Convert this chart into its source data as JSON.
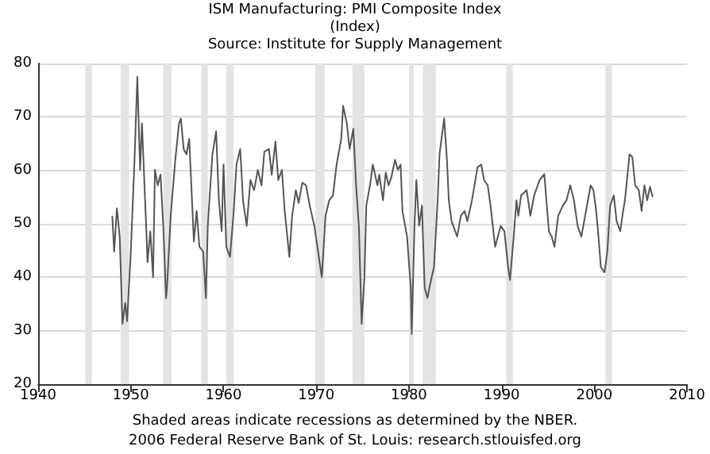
{
  "chart_data": {
    "type": "line",
    "title": "ISM Manufacturing: PMI Composite Index",
    "subtitle": "(Index)",
    "annotations": [
      "Source: Institute for Supply Management",
      "Shaded areas indicate recessions as determined by the NBER.",
      "2006 Federal Reserve Bank of St. Louis: research.stlouisfed.org"
    ],
    "x": [
      1948.0,
      1948.2,
      1948.5,
      1948.8,
      1949.1,
      1949.4,
      1949.6,
      1950.0,
      1950.4,
      1950.7,
      1951.0,
      1951.2,
      1951.7,
      1951.8,
      1952.1,
      1952.4,
      1952.6,
      1952.9,
      1953.2,
      1953.5,
      1953.8,
      1953.9,
      1954.3,
      1954.8,
      1955.2,
      1955.4,
      1955.7,
      1956.0,
      1956.3,
      1956.6,
      1956.8,
      1957.1,
      1957.4,
      1957.8,
      1958.1,
      1958.3,
      1958.8,
      1959.2,
      1959.5,
      1959.8,
      1960.0,
      1960.3,
      1960.7,
      1961.1,
      1961.4,
      1961.8,
      1962.1,
      1962.5,
      1962.9,
      1963.3,
      1963.7,
      1964.1,
      1964.4,
      1964.9,
      1965.2,
      1965.6,
      1965.9,
      1966.3,
      1966.6,
      1967.1,
      1967.4,
      1967.8,
      1968.1,
      1968.5,
      1968.9,
      1969.3,
      1969.8,
      1970.2,
      1970.6,
      1971.0,
      1971.4,
      1971.8,
      1972.2,
      1972.7,
      1972.9,
      1973.3,
      1973.6,
      1974.0,
      1974.3,
      1974.6,
      1974.9,
      1975.2,
      1975.4,
      1975.8,
      1976.1,
      1976.6,
      1976.8,
      1977.2,
      1977.5,
      1977.8,
      1978.1,
      1978.5,
      1978.8,
      1979.1,
      1979.3,
      1979.8,
      1980.2,
      1980.3,
      1980.6,
      1980.8,
      1981.1,
      1981.4,
      1981.7,
      1982.0,
      1982.2,
      1982.7,
      1983.1,
      1983.3,
      1983.8,
      1984.1,
      1984.3,
      1984.6,
      1985.2,
      1985.6,
      1986.0,
      1986.3,
      1986.8,
      1987.4,
      1987.8,
      1988.1,
      1988.5,
      1988.8,
      1989.3,
      1989.9,
      1990.3,
      1990.7,
      1990.9,
      1991.3,
      1991.6,
      1991.8,
      1992.1,
      1992.7,
      1993.1,
      1993.5,
      1994.1,
      1994.6,
      1995.1,
      1995.4,
      1995.7,
      1996.1,
      1996.6,
      1997.0,
      1997.4,
      1997.8,
      1998.2,
      1998.6,
      1999.1,
      1999.6,
      1999.9,
      2000.2,
      2000.4,
      2000.7,
      2001.1,
      2001.4,
      2001.7,
      2002.1,
      2002.4,
      2002.8,
      2003.1,
      2003.3,
      2003.8,
      2004.1,
      2004.4,
      2004.8,
      2005.1,
      2005.4,
      2005.7,
      2006.0,
      2006.3
    ],
    "series": [
      {
        "color": "#555555",
        "values": [
          51.5,
          44.8,
          52.9,
          47.6,
          31.3,
          35.2,
          31.8,
          44.8,
          62.0,
          77.5,
          60.1,
          68.8,
          47.6,
          42.8,
          48.6,
          40.0,
          60.1,
          57.2,
          59.2,
          49.6,
          36.1,
          38.0,
          51.5,
          62.0,
          68.8,
          69.7,
          64.0,
          63.0,
          65.9,
          54.4,
          46.7,
          52.4,
          45.7,
          44.8,
          36.1,
          49.6,
          63.0,
          67.3,
          54.4,
          48.6,
          61.1,
          45.7,
          43.8,
          52.4,
          61.1,
          64.0,
          54.4,
          49.6,
          58.2,
          56.3,
          60.1,
          57.2,
          63.5,
          64.0,
          59.2,
          65.4,
          58.2,
          60.1,
          52.4,
          43.8,
          51.5,
          56.3,
          53.9,
          57.7,
          57.2,
          53.4,
          49.6,
          44.8,
          40.0,
          51.5,
          54.4,
          55.3,
          61.1,
          65.9,
          72.1,
          68.8,
          64.0,
          67.8,
          57.2,
          49.6,
          31.3,
          40.0,
          53.4,
          57.2,
          61.1,
          57.2,
          59.2,
          54.4,
          59.6,
          57.2,
          58.7,
          62.0,
          60.1,
          61.1,
          52.4,
          47.6,
          38.0,
          29.4,
          49.6,
          58.2,
          49.6,
          53.4,
          38.0,
          36.1,
          38.0,
          41.9,
          54.4,
          63.0,
          69.7,
          62.0,
          54.4,
          50.5,
          47.6,
          51.5,
          52.4,
          50.5,
          54.4,
          60.6,
          61.1,
          58.2,
          57.2,
          53.4,
          45.7,
          49.6,
          48.6,
          41.9,
          39.5,
          47.6,
          54.4,
          51.5,
          55.3,
          56.3,
          51.5,
          55.3,
          58.2,
          59.3,
          48.6,
          47.6,
          45.7,
          51.5,
          53.4,
          54.4,
          57.2,
          54.4,
          49.6,
          47.6,
          52.4,
          57.2,
          56.3,
          52.4,
          48.6,
          41.9,
          40.9,
          44.8,
          53.4,
          55.3,
          50.5,
          48.6,
          52.4,
          54.4,
          63.0,
          62.5,
          57.2,
          56.3,
          52.4,
          57.2,
          54.4,
          56.9,
          55.0
        ]
      }
    ],
    "xlim": [
      1940,
      2010
    ],
    "xticks": [
      1940,
      1950,
      1960,
      1970,
      1980,
      1990,
      2000,
      2010
    ],
    "ylim": [
      20,
      80
    ],
    "yticks": [
      20,
      30,
      40,
      50,
      60,
      70,
      80
    ],
    "grid": "y",
    "bands": [
      {
        "axis": "x",
        "from": 1945.1,
        "to": 1945.8,
        "color": "#e3e3e3"
      },
      {
        "axis": "x",
        "from": 1948.9,
        "to": 1949.8,
        "color": "#e3e3e3"
      },
      {
        "axis": "x",
        "from": 1953.5,
        "to": 1954.4,
        "color": "#e3e3e3"
      },
      {
        "axis": "x",
        "from": 1957.6,
        "to": 1958.3,
        "color": "#e3e3e3"
      },
      {
        "axis": "x",
        "from": 1960.3,
        "to": 1961.1,
        "color": "#e3e3e3"
      },
      {
        "axis": "x",
        "from": 1969.9,
        "to": 1970.9,
        "color": "#e3e3e3"
      },
      {
        "axis": "x",
        "from": 1973.9,
        "to": 1975.2,
        "color": "#e3e3e3"
      },
      {
        "axis": "x",
        "from": 1980.0,
        "to": 1980.5,
        "color": "#e3e3e3"
      },
      {
        "axis": "x",
        "from": 1981.5,
        "to": 1982.9,
        "color": "#e3e3e3"
      },
      {
        "axis": "x",
        "from": 1990.5,
        "to": 1991.2,
        "color": "#e3e3e3"
      },
      {
        "axis": "x",
        "from": 2001.2,
        "to": 2001.9,
        "color": "#e3e3e3"
      }
    ],
    "marker": "none",
    "line_style": "solid"
  }
}
